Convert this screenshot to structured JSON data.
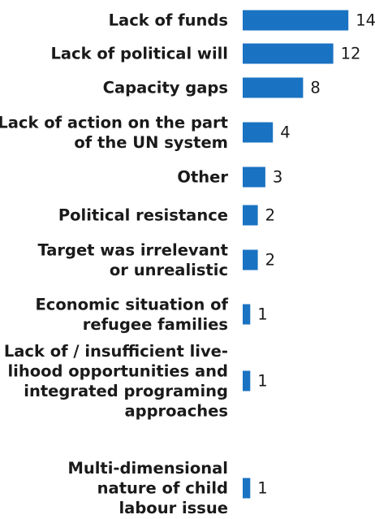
{
  "chart_data": {
    "type": "bar",
    "orientation": "horizontal",
    "bar_color": "#1a72c2",
    "categories": [
      "Lack of funds",
      "Lack of political will",
      "Capacity gaps",
      "Lack of action on the part of the UN system",
      "Other",
      "Political resistance",
      "Target was irrelevant or unrealistic",
      "Economic situation of refugee families",
      "Lack of / insufficient livelihood opportunities and integrated programing approaches",
      "Multi-dimensional nature of child labour issue"
    ],
    "category_label_lines": [
      [
        "Lack of funds"
      ],
      [
        "Lack of political will"
      ],
      [
        "Capacity gaps"
      ],
      [
        "Lack of action on the part",
        "of the UN system"
      ],
      [
        "Other"
      ],
      [
        "Political resistance"
      ],
      [
        "Target was irrelevant",
        "or unrealistic"
      ],
      [
        "Economic situation of",
        "refugee families"
      ],
      [
        "Lack of / insufficient live-",
        "lihood opportunities and",
        "integrated programing",
        "approaches"
      ],
      [
        "Multi-dimensional",
        "nature of child",
        "labour issue"
      ]
    ],
    "values": [
      14,
      12,
      8,
      4,
      3,
      2,
      2,
      1,
      1,
      1
    ],
    "value_labels": [
      "14",
      "12",
      "8",
      "4",
      "3",
      "2",
      "2",
      "1",
      "1",
      "1"
    ]
  }
}
